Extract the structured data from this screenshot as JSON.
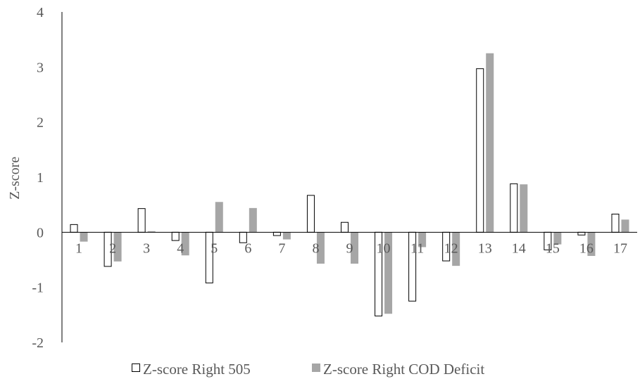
{
  "chart_data": {
    "type": "bar",
    "ylabel": "Z-score",
    "ylim": [
      -2,
      4
    ],
    "yticks": [
      4,
      3,
      2,
      1,
      0,
      -1,
      -2
    ],
    "grid": false,
    "legend_position": "bottom",
    "categories": [
      "1",
      "2",
      "3",
      "4",
      "5",
      "6",
      "7",
      "8",
      "9",
      "10",
      "11",
      "12",
      "13",
      "14",
      "15",
      "16",
      "17"
    ],
    "series": [
      {
        "name": "Z-score Right 505",
        "style": "outline",
        "fill": "#ffffff",
        "stroke": "#000000",
        "values": [
          0.14,
          -0.62,
          0.43,
          -0.15,
          -0.92,
          -0.19,
          -0.06,
          0.67,
          0.18,
          -1.52,
          -1.25,
          -0.52,
          2.97,
          0.88,
          -0.32,
          -0.05,
          0.33
        ]
      },
      {
        "name": "Z-score Right COD Deficit",
        "style": "filled",
        "fill": "#a6a6a6",
        "stroke": "#a6a6a6",
        "values": [
          -0.17,
          -0.53,
          0.02,
          -0.42,
          0.55,
          0.44,
          -0.13,
          -0.57,
          -0.57,
          -1.48,
          -0.27,
          -0.61,
          3.25,
          0.87,
          -0.22,
          -0.43,
          0.23
        ]
      }
    ]
  }
}
